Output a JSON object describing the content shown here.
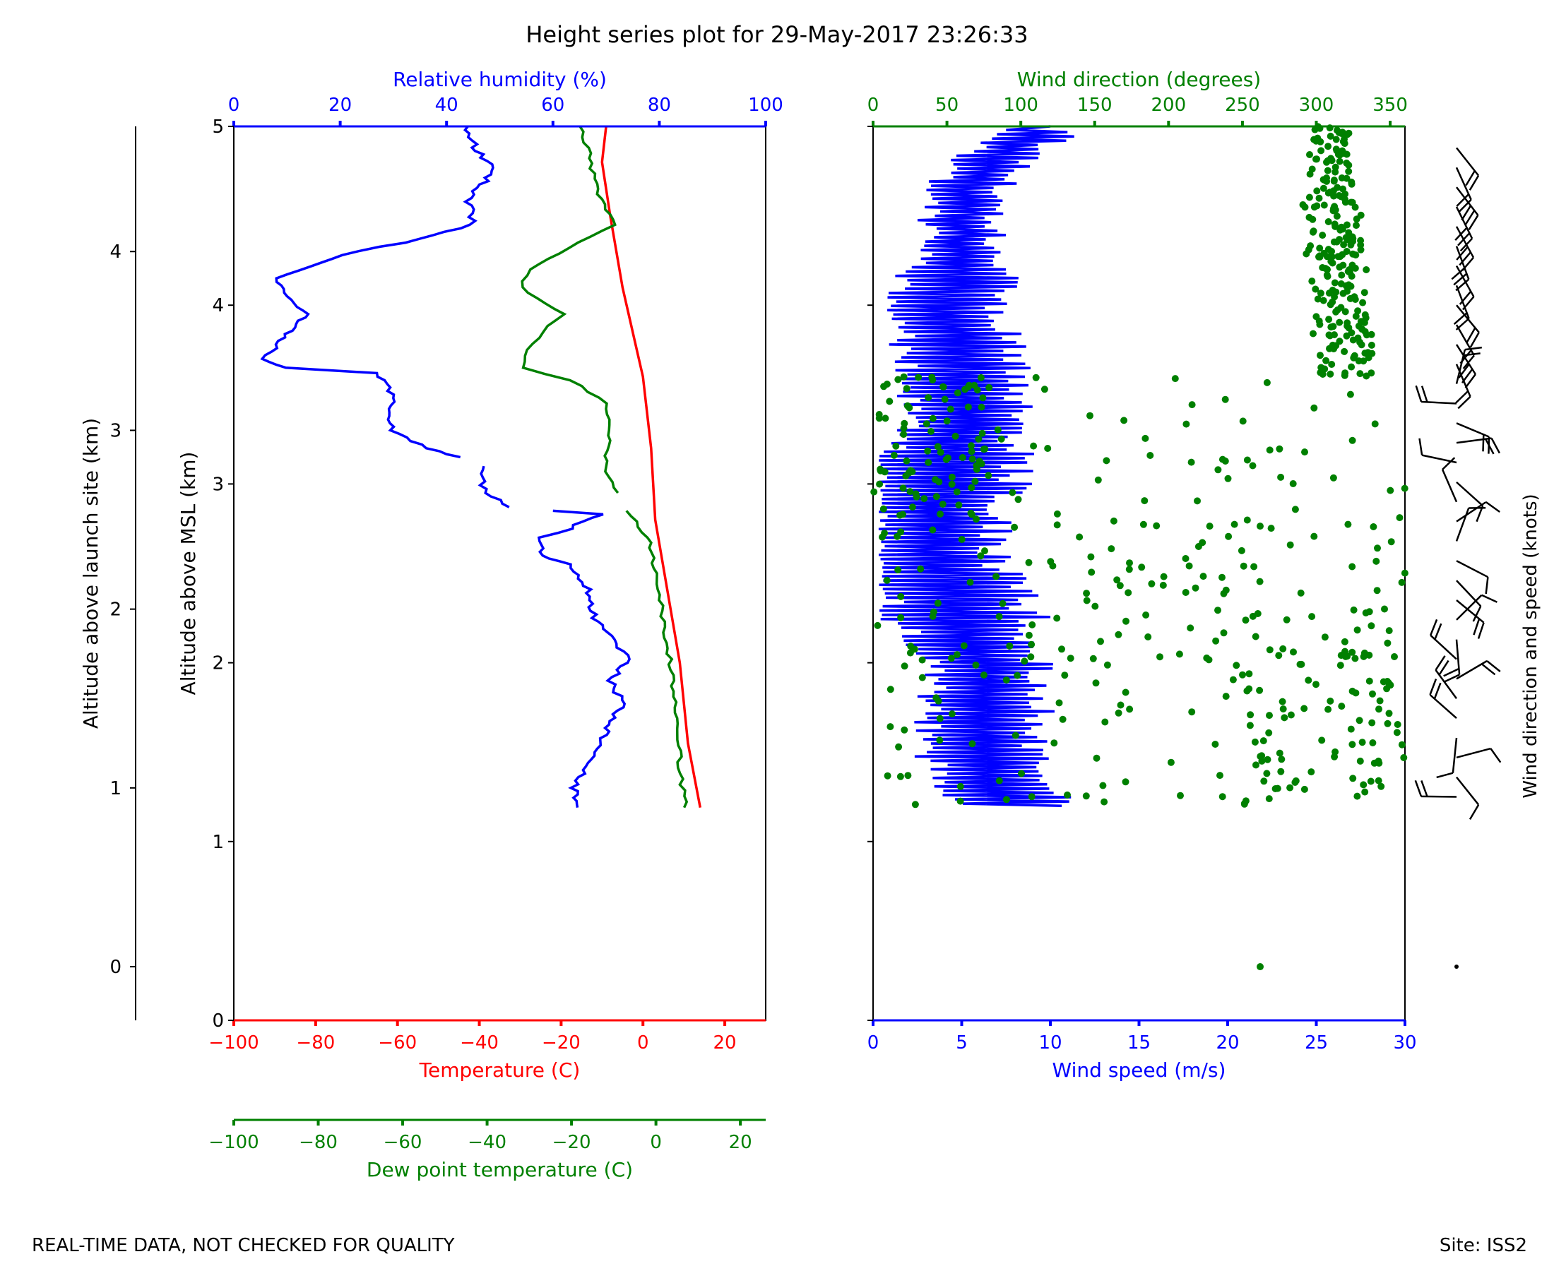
{
  "title": "Height series plot for 29-May-2017 23:26:33",
  "footer": {
    "disclaimer": "REAL-TIME DATA, NOT CHECKED FOR QUALITY",
    "site": "Site: ISS2"
  },
  "colors": {
    "temperature": "#ff0000",
    "dewpoint": "#008000",
    "humidity": "#0000ff",
    "wind_speed": "#0000ff",
    "wind_direction": "#008000",
    "barbs": "#000000"
  },
  "chart_data": [
    {
      "type": "line",
      "name": "thermodynamic-panel",
      "axes": {
        "temperature": {
          "label": "Temperature (C)",
          "range": [
            -100,
            30
          ],
          "ticks": [
            -100,
            -80,
            -60,
            -40,
            -20,
            0,
            20
          ]
        },
        "dewpoint": {
          "label": "Dew point temperature (C)",
          "range": [
            -100,
            26
          ],
          "ticks": [
            -100,
            -80,
            -60,
            -40,
            -20,
            0,
            20
          ]
        },
        "humidity": {
          "label": "Relative humidity (%)",
          "range": [
            0,
            100
          ],
          "ticks": [
            0,
            20,
            40,
            60,
            80,
            100
          ]
        },
        "msl": {
          "label": "Altitude above MSL (km)",
          "range": [
            0,
            5
          ],
          "ticks": [
            0,
            1,
            2,
            3,
            4,
            5
          ],
          "tick_labels": [
            "0",
            "1",
            "2",
            "3",
            "4",
            "5"
          ]
        },
        "agl": {
          "label": "Altitude above launch site (km)",
          "range": [
            -0.3,
            4.7
          ],
          "ticks": [
            0,
            1,
            2,
            3,
            4
          ],
          "tick_labels": [
            "0",
            "1",
            "2",
            "3",
            "4"
          ]
        }
      },
      "series": [
        {
          "name": "Temperature",
          "color": "#ff0000",
          "points": [
            [
              14,
              1.19
            ],
            [
              11,
              1.55
            ],
            [
              9,
              2.0
            ],
            [
              6,
              2.4
            ],
            [
              3,
              2.8
            ],
            [
              2,
              3.2
            ],
            [
              0,
              3.6
            ],
            [
              -2,
              3.8
            ],
            [
              -5,
              4.1
            ],
            [
              -8,
              4.5
            ],
            [
              -10,
              4.8
            ],
            [
              -9,
              5.0
            ]
          ]
        },
        {
          "name": "Dew point",
          "color": "#008000",
          "segments": [
            [
              [
                7,
                1.19
              ],
              [
                6,
                1.35
              ],
              [
                5,
                1.6
              ],
              [
                4,
                1.9
              ],
              [
                2,
                2.2
              ],
              [
                0,
                2.5
              ],
              [
                -2,
                2.7
              ],
              [
                -7,
                2.85
              ]
            ],
            [
              [
                -9,
                2.95
              ],
              [
                -12,
                3.1
              ],
              [
                -11,
                3.3
              ],
              [
                -12,
                3.45
              ],
              [
                -20,
                3.58
              ],
              [
                -32,
                3.65
              ],
              [
                -30,
                3.75
              ],
              [
                -27,
                3.85
              ],
              [
                -22,
                3.95
              ],
              [
                -32,
                4.1
              ],
              [
                -30,
                4.2
              ],
              [
                -18,
                4.35
              ],
              [
                -10,
                4.45
              ],
              [
                -14,
                4.65
              ],
              [
                -16,
                4.85
              ],
              [
                -18,
                5.0
              ]
            ]
          ]
        },
        {
          "name": "Relative humidity",
          "color": "#0000ff",
          "segments": [
            [
              [
                65,
                1.19
              ],
              [
                64,
                1.3
              ],
              [
                68,
                1.5
              ],
              [
                73,
                1.77
              ],
              [
                71,
                1.9
              ],
              [
                74,
                2.02
              ],
              [
                71,
                2.15
              ],
              [
                68,
                2.25
              ],
              [
                66,
                2.45
              ],
              [
                63,
                2.55
              ],
              [
                58,
                2.6
              ],
              [
                58,
                2.7
              ],
              [
                63,
                2.75
              ],
              [
                69,
                2.83
              ],
              [
                60,
                2.85
              ]
            ],
            [
              [
                52,
                2.87
              ],
              [
                47,
                2.95
              ],
              [
                47,
                3.1
              ]
            ],
            [
              [
                42,
                3.15
              ],
              [
                36,
                3.2
              ],
              [
                30,
                3.3
              ],
              [
                29,
                3.4
              ],
              [
                30,
                3.5
              ],
              [
                27,
                3.62
              ],
              [
                10,
                3.65
              ],
              [
                6,
                3.7
              ],
              [
                9,
                3.82
              ],
              [
                14,
                3.95
              ],
              [
                10,
                4.05
              ],
              [
                8,
                4.15
              ],
              [
                20,
                4.28
              ],
              [
                32,
                4.35
              ],
              [
                45,
                4.45
              ],
              [
                44,
                4.6
              ],
              [
                49,
                4.75
              ],
              [
                45,
                4.9
              ],
              [
                44,
                5.0
              ]
            ]
          ]
        }
      ]
    },
    {
      "type": "scatter",
      "name": "wind-panel",
      "axes": {
        "speed": {
          "label": "Wind speed (m/s)",
          "range": [
            0,
            30
          ],
          "ticks": [
            0,
            5,
            10,
            15,
            20,
            25,
            30
          ]
        },
        "direction": {
          "label": "Wind direction (degrees)",
          "range": [
            0,
            360
          ],
          "ticks": [
            0,
            50,
            100,
            150,
            200,
            250,
            300,
            350
          ]
        }
      },
      "series": [
        {
          "name": "Wind speed",
          "color": "#0000ff",
          "profile": [
            [
              8,
              1.2
            ],
            [
              6,
              1.5
            ],
            [
              6.5,
              1.9
            ],
            [
              5,
              2.3
            ],
            [
              3,
              2.6
            ],
            [
              4,
              3.0
            ],
            [
              5,
              3.4
            ],
            [
              5,
              3.7
            ],
            [
              4,
              4.0
            ],
            [
              5,
              4.3
            ],
            [
              5,
              4.6
            ],
            [
              7,
              4.85
            ],
            [
              10,
              5.0
            ]
          ],
          "oscillating_segment": [
            [
              1.2,
              5.0
            ],
            [
              7,
              2.2
            ],
            [
              2,
              3.0
            ],
            [
              1.5,
              3.8
            ]
          ]
        },
        {
          "name": "Wind direction",
          "color": "#008000",
          "note": "scatter points",
          "bands": [
            {
              "from": 1.2,
              "to": 1.9,
              "direction_range": [
                0,
                360
              ],
              "dense": [
                250,
                360
              ]
            },
            {
              "from": 1.9,
              "to": 2.8,
              "direction_range": [
                0,
                360
              ]
            },
            {
              "from": 2.8,
              "to": 3.6,
              "direction_range": [
                0,
                360
              ],
              "dense": [
                0,
                80
              ]
            },
            {
              "from": 3.6,
              "to": 4.6,
              "direction_range": [
                300,
                340
              ]
            },
            {
              "from": 4.6,
              "to": 5.0,
              "direction_range": [
                295,
                325
              ]
            }
          ],
          "isolated_point": [
            262,
            0.3
          ]
        }
      ]
    }
  ],
  "wind_barbs": {
    "label": "Wind direction and speed (knots)"
  }
}
